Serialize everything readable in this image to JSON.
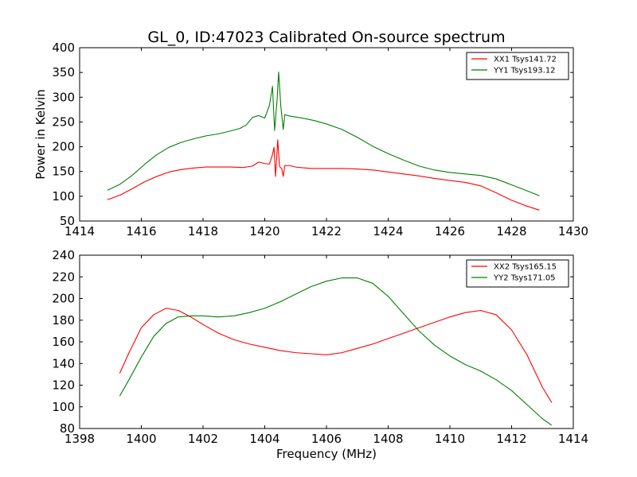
{
  "title": "GL_0, ID:47023 Calibrated On-source spectrum",
  "chart_data": [
    {
      "type": "line",
      "xlabel": "",
      "ylabel": "Power in Kelvin",
      "xlim": [
        1414,
        1430
      ],
      "ylim": [
        50,
        400
      ],
      "xticks": [
        1414,
        1416,
        1418,
        1420,
        1422,
        1424,
        1426,
        1428,
        1430
      ],
      "yticks": [
        50,
        100,
        150,
        200,
        250,
        300,
        350,
        400
      ],
      "legend_position": "top-right",
      "series": [
        {
          "name": "XX1 Tsys141.72",
          "color": "#ff0000",
          "points": [
            [
              1414.9,
              93
            ],
            [
              1415.3,
              102
            ],
            [
              1415.7,
              115
            ],
            [
              1416.1,
              129
            ],
            [
              1416.5,
              140
            ],
            [
              1416.9,
              149
            ],
            [
              1417.3,
              154
            ],
            [
              1417.7,
              157
            ],
            [
              1418.1,
              159
            ],
            [
              1418.5,
              159
            ],
            [
              1418.9,
              159
            ],
            [
              1419.3,
              158
            ],
            [
              1419.6,
              161
            ],
            [
              1419.8,
              169
            ],
            [
              1420.0,
              166
            ],
            [
              1420.15,
              165
            ],
            [
              1420.25,
              184
            ],
            [
              1420.3,
              199
            ],
            [
              1420.35,
              140
            ],
            [
              1420.42,
              214
            ],
            [
              1420.48,
              160
            ],
            [
              1420.55,
              156
            ],
            [
              1420.6,
              140
            ],
            [
              1420.65,
              162
            ],
            [
              1420.8,
              162
            ],
            [
              1421.0,
              159
            ],
            [
              1421.5,
              156
            ],
            [
              1422.0,
              156
            ],
            [
              1422.5,
              156
            ],
            [
              1423.0,
              155
            ],
            [
              1423.5,
              153
            ],
            [
              1424.0,
              149
            ],
            [
              1424.5,
              145
            ],
            [
              1425.0,
              141
            ],
            [
              1425.5,
              136
            ],
            [
              1426.0,
              132
            ],
            [
              1426.5,
              128
            ],
            [
              1427.0,
              121
            ],
            [
              1427.5,
              107
            ],
            [
              1428.0,
              92
            ],
            [
              1428.5,
              80
            ],
            [
              1428.9,
              72
            ]
          ]
        },
        {
          "name": "YY1 Tsys193.12",
          "color": "#008000",
          "points": [
            [
              1414.9,
              112
            ],
            [
              1415.3,
              124
            ],
            [
              1415.7,
              142
            ],
            [
              1416.1,
              164
            ],
            [
              1416.5,
              184
            ],
            [
              1416.9,
              199
            ],
            [
              1417.3,
              209
            ],
            [
              1417.7,
              216
            ],
            [
              1418.1,
              222
            ],
            [
              1418.5,
              226
            ],
            [
              1418.9,
              232
            ],
            [
              1419.2,
              237
            ],
            [
              1419.4,
              244
            ],
            [
              1419.6,
              259
            ],
            [
              1419.8,
              263
            ],
            [
              1420.0,
              258
            ],
            [
              1420.15,
              283
            ],
            [
              1420.25,
              322
            ],
            [
              1420.32,
              233
            ],
            [
              1420.4,
              295
            ],
            [
              1420.45,
              351
            ],
            [
              1420.52,
              282
            ],
            [
              1420.6,
              235
            ],
            [
              1420.65,
              265
            ],
            [
              1420.8,
              262
            ],
            [
              1421.2,
              258
            ],
            [
              1421.6,
              253
            ],
            [
              1422.0,
              246
            ],
            [
              1422.5,
              235
            ],
            [
              1423.0,
              219
            ],
            [
              1423.5,
              201
            ],
            [
              1424.0,
              186
            ],
            [
              1424.5,
              173
            ],
            [
              1425.0,
              161
            ],
            [
              1425.5,
              153
            ],
            [
              1426.0,
              148
            ],
            [
              1426.5,
              145
            ],
            [
              1427.0,
              142
            ],
            [
              1427.5,
              135
            ],
            [
              1428.0,
              123
            ],
            [
              1428.5,
              111
            ],
            [
              1428.9,
              101
            ]
          ]
        }
      ]
    },
    {
      "type": "line",
      "xlabel": "Frequency (MHz)",
      "ylabel": "",
      "xlim": [
        1398,
        1414
      ],
      "ylim": [
        80,
        240
      ],
      "xticks": [
        1398,
        1400,
        1402,
        1404,
        1406,
        1408,
        1410,
        1412,
        1414
      ],
      "yticks": [
        80,
        100,
        120,
        140,
        160,
        180,
        200,
        220,
        240
      ],
      "legend_position": "top-right",
      "series": [
        {
          "name": "XX2 Tsys165.15",
          "color": "#ff0000",
          "points": [
            [
              1399.3,
              131
            ],
            [
              1399.6,
              150
            ],
            [
              1400.0,
              173
            ],
            [
              1400.4,
              185
            ],
            [
              1400.8,
              191
            ],
            [
              1401.2,
              189
            ],
            [
              1401.6,
              183
            ],
            [
              1402.0,
              176
            ],
            [
              1402.5,
              168
            ],
            [
              1403.0,
              162
            ],
            [
              1403.5,
              158
            ],
            [
              1404.0,
              155
            ],
            [
              1404.5,
              152
            ],
            [
              1405.0,
              150
            ],
            [
              1405.5,
              149
            ],
            [
              1406.0,
              148
            ],
            [
              1406.5,
              150
            ],
            [
              1407.0,
              154
            ],
            [
              1407.5,
              158
            ],
            [
              1408.0,
              163
            ],
            [
              1408.5,
              168
            ],
            [
              1409.0,
              173
            ],
            [
              1409.5,
              178
            ],
            [
              1410.0,
              183
            ],
            [
              1410.5,
              187
            ],
            [
              1411.0,
              189
            ],
            [
              1411.5,
              185
            ],
            [
              1412.0,
              171
            ],
            [
              1412.5,
              148
            ],
            [
              1413.0,
              118
            ],
            [
              1413.3,
              104
            ]
          ]
        },
        {
          "name": "YY2 Tsys171.05",
          "color": "#008000",
          "points": [
            [
              1399.3,
              110
            ],
            [
              1399.6,
              125
            ],
            [
              1400.0,
              146
            ],
            [
              1400.4,
              165
            ],
            [
              1400.8,
              177
            ],
            [
              1401.2,
              183
            ],
            [
              1401.6,
              184
            ],
            [
              1402.0,
              184
            ],
            [
              1402.5,
              183
            ],
            [
              1403.0,
              184
            ],
            [
              1403.5,
              187
            ],
            [
              1404.0,
              191
            ],
            [
              1404.5,
              197
            ],
            [
              1405.0,
              204
            ],
            [
              1405.5,
              211
            ],
            [
              1406.0,
              216
            ],
            [
              1406.5,
              219
            ],
            [
              1407.0,
              219
            ],
            [
              1407.5,
              214
            ],
            [
              1408.0,
              202
            ],
            [
              1408.5,
              186
            ],
            [
              1409.0,
              170
            ],
            [
              1409.5,
              157
            ],
            [
              1410.0,
              147
            ],
            [
              1410.5,
              139
            ],
            [
              1411.0,
              133
            ],
            [
              1411.5,
              125
            ],
            [
              1412.0,
              115
            ],
            [
              1412.5,
              102
            ],
            [
              1413.0,
              89
            ],
            [
              1413.3,
              83
            ]
          ]
        }
      ]
    }
  ]
}
